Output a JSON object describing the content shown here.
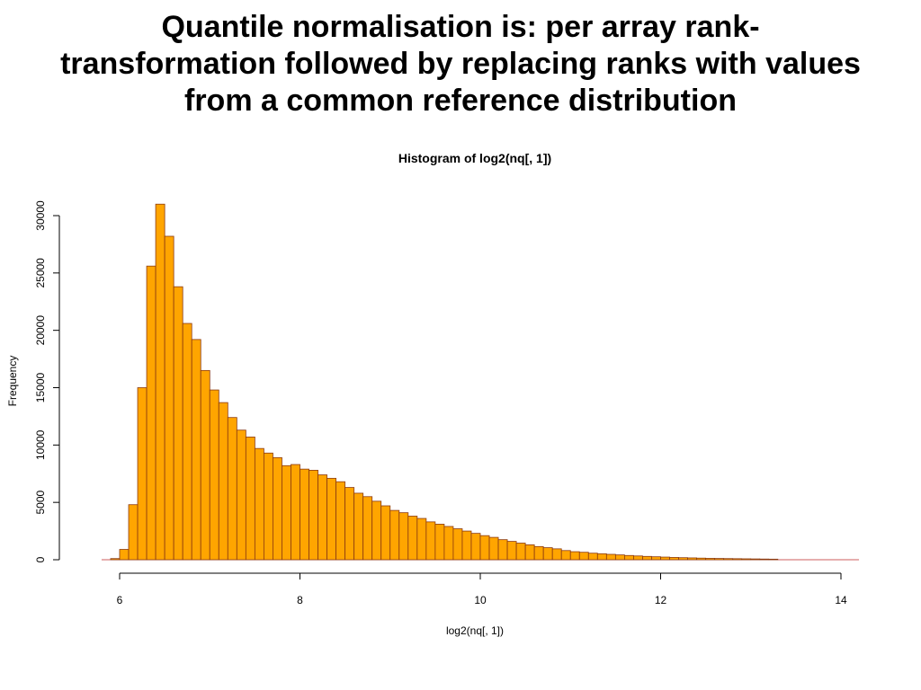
{
  "slide": {
    "title_lines": [
      "Quantile normalisation is: per array rank-",
      "transformation followed by replacing ranks with values",
      "from a common reference distribution"
    ]
  },
  "colors": {
    "bar_fill": "#ffa500",
    "bar_stroke": "#8b3a0f",
    "baseline": "#cd5c5c",
    "axis": "#000000"
  },
  "chart_data": {
    "type": "bar",
    "subtype": "histogram",
    "title": "Histogram of log2(nq[, 1])",
    "xlabel": "log2(nq[, 1])",
    "ylabel": "Frequency",
    "xlim": [
      5.7,
      14.2
    ],
    "ylim": [
      0,
      31000
    ],
    "x_ticks": [
      6,
      8,
      10,
      12,
      14
    ],
    "y_ticks": [
      0,
      5000,
      10000,
      15000,
      20000,
      25000,
      30000
    ],
    "x_tick_labels": [
      "6",
      "8",
      "10",
      "12",
      "14"
    ],
    "y_tick_labels": [
      "0",
      "5000",
      "10000",
      "15000",
      "20000",
      "25000",
      "30000"
    ],
    "grid": false,
    "bin_start": 5.9,
    "bin_width": 0.1,
    "values": [
      100,
      900,
      4800,
      15000,
      25600,
      31000,
      28200,
      23800,
      20600,
      19200,
      16500,
      14800,
      13700,
      12400,
      11300,
      10700,
      9700,
      9300,
      8900,
      8200,
      8300,
      7900,
      7800,
      7400,
      7100,
      6800,
      6300,
      5800,
      5500,
      5100,
      4700,
      4300,
      4100,
      3800,
      3600,
      3300,
      3100,
      2900,
      2700,
      2500,
      2300,
      2100,
      1950,
      1750,
      1600,
      1450,
      1300,
      1150,
      1050,
      950,
      800,
      700,
      650,
      570,
      520,
      470,
      420,
      370,
      330,
      290,
      260,
      230,
      200,
      180,
      160,
      140,
      120,
      110,
      100,
      90,
      80,
      70,
      60,
      50
    ]
  }
}
